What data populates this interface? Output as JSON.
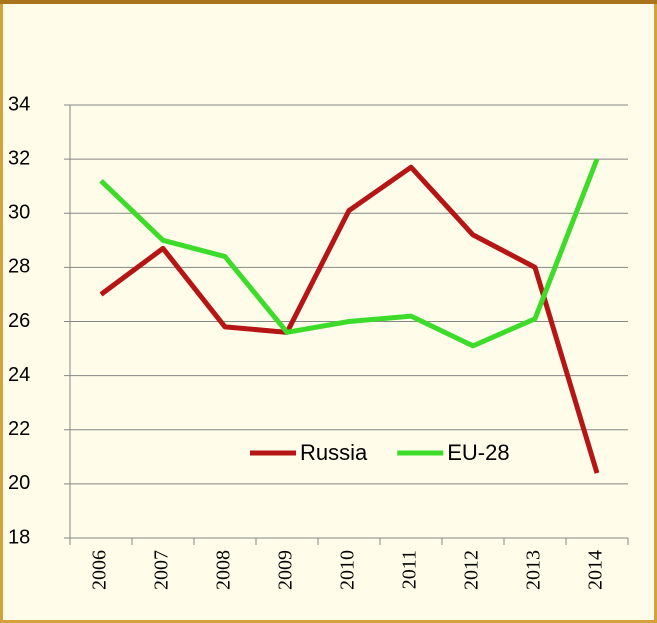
{
  "chart_data": {
    "type": "line",
    "categories": [
      "2006",
      "2007",
      "2008",
      "2009",
      "2010",
      "2011",
      "2012",
      "2013",
      "2014"
    ],
    "series": [
      {
        "name": "Russia",
        "color": "#b51515",
        "values": [
          27.0,
          28.7,
          25.8,
          25.6,
          30.1,
          31.7,
          29.2,
          28.0,
          20.4
        ]
      },
      {
        "name": "EU-28",
        "color": "#3ddc2a",
        "values": [
          31.2,
          29.0,
          28.4,
          25.6,
          26.0,
          26.2,
          25.1,
          26.1,
          32.0
        ]
      }
    ],
    "ylim": [
      18,
      34
    ],
    "yticks": [
      18,
      20,
      22,
      24,
      26,
      28,
      30,
      32,
      34
    ],
    "grid": true,
    "legend": "lower right"
  }
}
